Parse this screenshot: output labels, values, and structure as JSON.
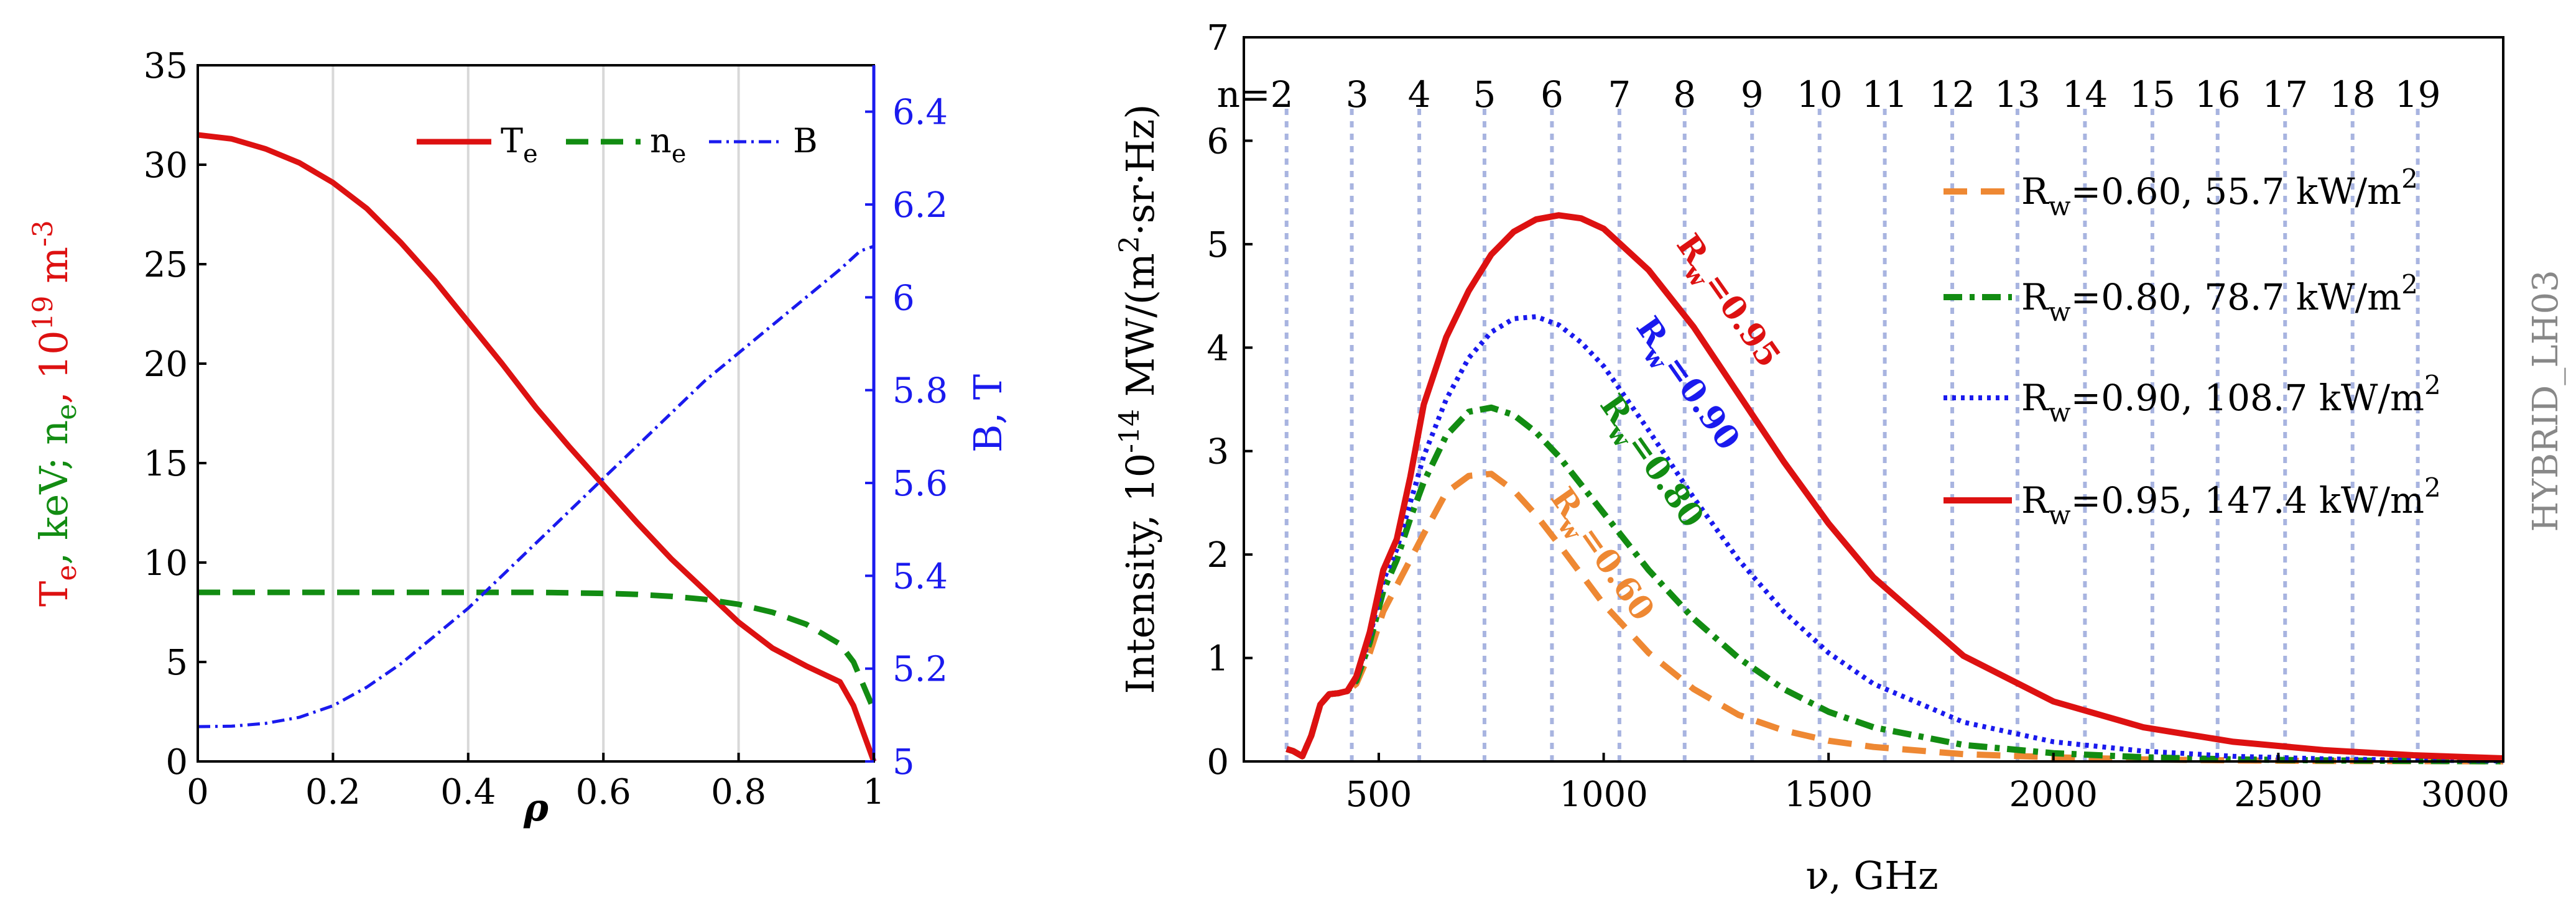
{
  "colors": {
    "red": "#dd1111",
    "green": "#128c12",
    "blue": "#1a1aee",
    "orange": "#ee8833",
    "harmonic_line": "#a8b4e0",
    "grid": "#d8d8d8",
    "label_gray": "#888888"
  },
  "chart_data": [
    {
      "type": "line",
      "xlabel": "ρ",
      "ylabel_left": {
        "t1": "T",
        "s1": "e",
        "t2": ", keV; n",
        "s2": "e",
        "t3": ", 10",
        "sup": "19",
        "t4": " m",
        "sup2": "-3"
      },
      "ylabel_right": "B, T",
      "xlim": [
        0,
        1
      ],
      "ylim_left": [
        0,
        35
      ],
      "ylim_right": [
        5,
        6.5
      ],
      "xticks": [
        "0",
        "0.2",
        "0.4",
        "0.6",
        "0.8",
        "1"
      ],
      "xtick_values": [
        0,
        0.2,
        0.4,
        0.6,
        0.8,
        1
      ],
      "yticks_left": [
        "0",
        "5",
        "10",
        "15",
        "20",
        "25",
        "30",
        "35"
      ],
      "ytick_left_values": [
        0,
        5,
        10,
        15,
        20,
        25,
        30,
        35
      ],
      "yticks_right": [
        "5",
        "5.2",
        "5.4",
        "5.6",
        "5.8",
        "6",
        "6.2",
        "6.4"
      ],
      "ytick_right_values": [
        5,
        5.2,
        5.4,
        5.6,
        5.8,
        6,
        6.2,
        6.4
      ],
      "grid_x": [
        0.2,
        0.4,
        0.6,
        0.8
      ],
      "legend_position": "top-right",
      "legend": [
        {
          "main": "T",
          "sub": "e"
        },
        {
          "main": "n",
          "sub": "e"
        },
        {
          "main": "B",
          "sub": ""
        }
      ],
      "series": [
        {
          "name": "Te",
          "axis": "left",
          "color": "red",
          "style": "solid",
          "x": [
            0,
            0.05,
            0.1,
            0.15,
            0.2,
            0.25,
            0.3,
            0.35,
            0.4,
            0.45,
            0.5,
            0.55,
            0.6,
            0.65,
            0.7,
            0.75,
            0.8,
            0.85,
            0.9,
            0.95,
            0.97,
            1.0
          ],
          "y": [
            31.5,
            31.3,
            30.8,
            30.1,
            29.1,
            27.8,
            26.1,
            24.2,
            22.1,
            20.0,
            17.8,
            15.8,
            13.9,
            12.0,
            10.2,
            8.6,
            7.0,
            5.7,
            4.8,
            4.0,
            2.8,
            0.0
          ]
        },
        {
          "name": "ne",
          "axis": "left",
          "color": "green",
          "style": "dash",
          "x": [
            0,
            0.1,
            0.2,
            0.3,
            0.4,
            0.5,
            0.6,
            0.65,
            0.7,
            0.75,
            0.8,
            0.85,
            0.9,
            0.95,
            0.97,
            1.0
          ],
          "y": [
            8.5,
            8.5,
            8.5,
            8.5,
            8.5,
            8.5,
            8.45,
            8.4,
            8.3,
            8.15,
            7.9,
            7.5,
            6.9,
            5.9,
            5.0,
            2.6
          ]
        },
        {
          "name": "B",
          "axis": "right",
          "color": "blue",
          "style": "dashdot",
          "x": [
            0,
            0.05,
            0.1,
            0.15,
            0.2,
            0.25,
            0.3,
            0.35,
            0.4,
            0.45,
            0.5,
            0.55,
            0.6,
            0.65,
            0.7,
            0.75,
            0.8,
            0.85,
            0.9,
            0.95,
            0.98,
            1.0
          ],
          "y": [
            5.075,
            5.076,
            5.082,
            5.095,
            5.12,
            5.16,
            5.21,
            5.27,
            5.33,
            5.4,
            5.47,
            5.54,
            5.61,
            5.68,
            5.75,
            5.82,
            5.88,
            5.94,
            6.0,
            6.06,
            6.1,
            6.11
          ]
        }
      ]
    },
    {
      "type": "line",
      "xlabel": "ν, GHz",
      "ylabel": {
        "t1": "Intensity, 10",
        "sup": "-14",
        "t2": " MW/(m",
        "sup2": "2",
        "t3": "·sr·Hz)"
      },
      "xlim": [
        200,
        3000
      ],
      "ylim": [
        0,
        7
      ],
      "xticks": [
        "500",
        "1000",
        "1500",
        "2000",
        "2500",
        "3000"
      ],
      "xtick_values": [
        500,
        1000,
        1500,
        2000,
        2500,
        3000
      ],
      "yticks": [
        "0",
        "1",
        "2",
        "3",
        "4",
        "5",
        "6",
        "7"
      ],
      "ytick_values": [
        0,
        1,
        2,
        3,
        4,
        5,
        6,
        7
      ],
      "harmonic_lines": [
        295,
        440,
        590,
        735,
        885,
        1035,
        1180,
        1330,
        1480,
        1625,
        1775,
        1920,
        2070,
        2220,
        2365,
        2515,
        2665,
        2810
      ],
      "harmonic_labels": [
        "n=2",
        "3",
        "4",
        "5",
        "6",
        "7",
        "8",
        "9",
        "10",
        "11",
        "12",
        "13",
        "14",
        "15",
        "16",
        "17",
        "18",
        "19"
      ],
      "harmonic_label_x": [
        225,
        452,
        590,
        735,
        885,
        1035,
        1180,
        1330,
        1480,
        1625,
        1775,
        1920,
        2070,
        2220,
        2365,
        2515,
        2665,
        2810
      ],
      "side_label": "HYBRID_LH03",
      "legend_position": "right",
      "legend": [
        {
          "pre": "R",
          "sub": "w",
          "post": "=0.60, 55.7 kW/m",
          "sup": "2"
        },
        {
          "pre": "R",
          "sub": "w",
          "post": "=0.80, 78.7 kW/m",
          "sup": "2"
        },
        {
          "pre": "R",
          "sub": "w",
          "post": "=0.90, 108.7 kW/m",
          "sup": "2"
        },
        {
          "pre": "R",
          "sub": "w",
          "post": "=0.95, 147.4 kW/m",
          "sup": "2"
        }
      ],
      "curve_labels": [
        {
          "main": "R",
          "sub": "w",
          "val": "=0.60",
          "x": 880,
          "y": 2.55
        },
        {
          "main": "R",
          "sub": "w",
          "val": "=0.80",
          "x": 990,
          "y": 3.45
        },
        {
          "main": "R",
          "sub": "w",
          "val": "=0.90",
          "x": 1070,
          "y": 4.2
        },
        {
          "main": "R",
          "sub": "w",
          "val": "=0.95",
          "x": 1160,
          "y": 5.0
        }
      ],
      "series": [
        {
          "name": "Rw=0.60",
          "color": "orange",
          "style": "dash",
          "x": [
            295,
            310,
            330,
            350,
            370,
            390,
            410,
            430,
            450,
            480,
            510,
            540,
            570,
            600,
            650,
            700,
            750,
            800,
            850,
            900,
            1000,
            1100,
            1200,
            1300,
            1400,
            1500,
            1600,
            1800,
            2000,
            2200,
            2400,
            2600,
            2800,
            3000
          ],
          "y": [
            0.12,
            0.1,
            0.05,
            0.25,
            0.55,
            0.65,
            0.66,
            0.68,
            0.75,
            1.05,
            1.45,
            1.7,
            1.95,
            2.2,
            2.6,
            2.76,
            2.78,
            2.62,
            2.38,
            2.1,
            1.52,
            1.05,
            0.7,
            0.45,
            0.3,
            0.2,
            0.14,
            0.07,
            0.04,
            0.02,
            0.01,
            0.005,
            0.003,
            0.001
          ]
        },
        {
          "name": "Rw=0.80",
          "color": "green",
          "style": "dashdot",
          "x": [
            295,
            310,
            330,
            350,
            370,
            390,
            410,
            430,
            450,
            480,
            510,
            540,
            570,
            600,
            650,
            700,
            750,
            800,
            850,
            900,
            1000,
            1100,
            1200,
            1300,
            1400,
            1500,
            1600,
            1800,
            2000,
            2200,
            2400,
            2600,
            2800,
            3000
          ],
          "y": [
            0.12,
            0.1,
            0.05,
            0.25,
            0.55,
            0.65,
            0.66,
            0.68,
            0.78,
            1.15,
            1.65,
            1.95,
            2.35,
            2.7,
            3.15,
            3.38,
            3.42,
            3.35,
            3.18,
            2.95,
            2.4,
            1.85,
            1.38,
            1.0,
            0.7,
            0.48,
            0.33,
            0.16,
            0.08,
            0.04,
            0.02,
            0.01,
            0.005,
            0.002
          ]
        },
        {
          "name": "Rw=0.90",
          "color": "blue",
          "style": "dot",
          "x": [
            295,
            310,
            330,
            350,
            370,
            390,
            410,
            430,
            450,
            480,
            510,
            540,
            570,
            600,
            650,
            700,
            750,
            800,
            850,
            900,
            950,
            1000,
            1100,
            1200,
            1300,
            1400,
            1500,
            1600,
            1800,
            2000,
            2200,
            2400,
            2600,
            2800,
            3000
          ],
          "y": [
            0.12,
            0.1,
            0.05,
            0.25,
            0.55,
            0.65,
            0.66,
            0.68,
            0.8,
            1.2,
            1.75,
            2.05,
            2.5,
            2.95,
            3.5,
            3.9,
            4.15,
            4.28,
            4.3,
            4.22,
            4.05,
            3.82,
            3.2,
            2.55,
            1.95,
            1.45,
            1.05,
            0.75,
            0.38,
            0.19,
            0.1,
            0.05,
            0.025,
            0.012,
            0.006
          ]
        },
        {
          "name": "Rw=0.95",
          "color": "red",
          "style": "solid",
          "x": [
            295,
            310,
            330,
            350,
            370,
            390,
            410,
            430,
            450,
            480,
            510,
            540,
            570,
            600,
            650,
            700,
            750,
            800,
            850,
            900,
            950,
            1000,
            1100,
            1200,
            1300,
            1400,
            1500,
            1600,
            1800,
            2000,
            2200,
            2400,
            2600,
            2800,
            3000
          ],
          "y": [
            0.12,
            0.1,
            0.05,
            0.25,
            0.55,
            0.65,
            0.66,
            0.68,
            0.82,
            1.25,
            1.85,
            2.15,
            2.75,
            3.45,
            4.1,
            4.55,
            4.9,
            5.12,
            5.24,
            5.28,
            5.25,
            5.15,
            4.75,
            4.2,
            3.55,
            2.9,
            2.3,
            1.78,
            1.02,
            0.58,
            0.33,
            0.19,
            0.11,
            0.06,
            0.03
          ]
        }
      ]
    }
  ]
}
